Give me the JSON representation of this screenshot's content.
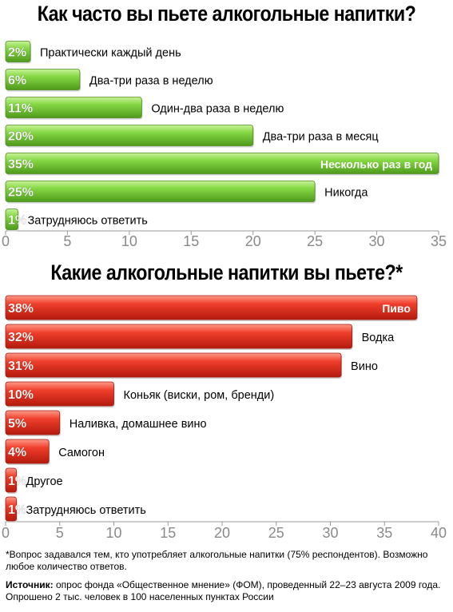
{
  "charts_meta": {
    "colors": {
      "green_fill": "#7fd13b",
      "green_light": "#b9ec84",
      "green_dark": "#4f9a1c",
      "red_fill": "#ee3524",
      "red_light": "#ff8a78",
      "red_dark": "#b81d10",
      "axis": "#999999"
    }
  },
  "chart_data": [
    {
      "type": "bar",
      "orientation": "horizontal",
      "title": "Как часто вы пьете алкогольные напитки?",
      "categories": [
        "Практически каждый день",
        "Два-три раза в неделю",
        "Один-два раза в неделю",
        "Два-три раза в месяц",
        "Несколько раз в год",
        "Никогда",
        "Затрудняюсь ответить"
      ],
      "values": [
        2,
        6,
        11,
        20,
        35,
        25,
        1
      ],
      "value_labels": [
        "2%",
        "6%",
        "11%",
        "20%",
        "35%",
        "25%",
        "1%"
      ],
      "label_inside": [
        false,
        false,
        false,
        false,
        true,
        false,
        false
      ],
      "xlim": [
        0,
        35
      ],
      "ticks": [
        0,
        5,
        10,
        15,
        20,
        25,
        30,
        35
      ],
      "tick_labels": [
        "0",
        "5",
        "10",
        "15",
        "20",
        "25",
        "30",
        "35"
      ],
      "color": "green",
      "grid": false
    },
    {
      "type": "bar",
      "orientation": "horizontal",
      "title": "Какие алкогольные напитки вы пьете?*",
      "categories": [
        "Пиво",
        "Водка",
        "Вино",
        "Коньяк (виски, ром, бренди)",
        "Наливка, домашнее вино",
        "Самогон",
        "Другое",
        "Затрудняюсь ответить"
      ],
      "values": [
        38,
        32,
        31,
        10,
        5,
        4,
        1,
        1
      ],
      "value_labels": [
        "38%",
        "32%",
        "31%",
        "10%",
        "5%",
        "4%",
        "1%",
        "1%"
      ],
      "label_inside": [
        true,
        false,
        false,
        false,
        false,
        false,
        false,
        false
      ],
      "xlim": [
        0,
        40
      ],
      "ticks": [
        0,
        5,
        10,
        15,
        20,
        25,
        30,
        35,
        40
      ],
      "tick_labels": [
        "0",
        "5",
        "10",
        "15",
        "20",
        "25",
        "30",
        "35",
        "40"
      ],
      "color": "red",
      "grid": false
    }
  ],
  "footnote": "*Вопрос задавался тем, кто употребляет алкогольные напитки (75% респондентов). Возможно любое количество ответов.",
  "source_label": "Источник:",
  "source_text": " опрос фонда «Общественное мнение» (ФОМ), проведенный 22–23 августа 2009 года. Опрошено 2 тыс. человек в 100 населенных пунктах России"
}
